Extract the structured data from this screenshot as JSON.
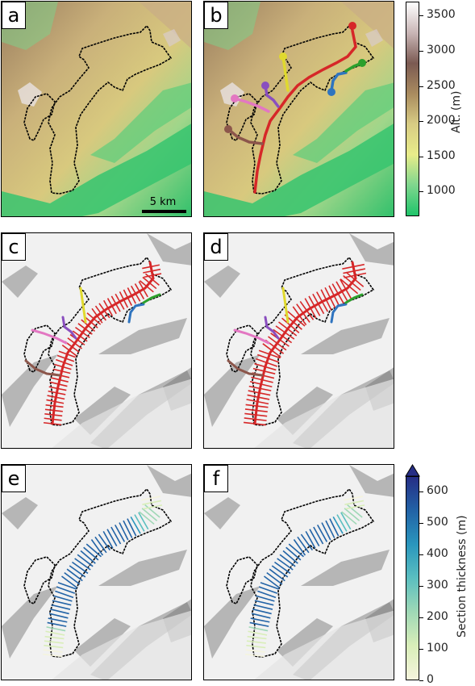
{
  "panels": [
    {
      "label": "a",
      "basemap": "dem"
    },
    {
      "label": "b",
      "basemap": "dem"
    },
    {
      "label": "c",
      "basemap": "hillshade"
    },
    {
      "label": "d",
      "basemap": "hillshade"
    },
    {
      "label": "e",
      "basemap": "hillshade"
    },
    {
      "label": "f",
      "basemap": "hillshade"
    }
  ],
  "scale_bar": {
    "label": "5 km"
  },
  "colorbar_altitude": {
    "label": "Alt. (m)",
    "ticks": [
      "3500",
      "3000",
      "2500",
      "2000",
      "1500",
      "1000"
    ],
    "tick_values": [
      3500,
      3000,
      2500,
      2000,
      1500,
      1000
    ],
    "range": [
      650,
      3700
    ],
    "colors": [
      "#1fc46a",
      "#7fd68e",
      "#e8ec8a",
      "#d8cc84",
      "#a98b5f",
      "#7b5a52",
      "#c9b6b6",
      "#ffffff"
    ]
  },
  "colorbar_thickness": {
    "label": "Section thickness (m)",
    "ticks": [
      "600",
      "500",
      "400",
      "300",
      "200",
      "100",
      "0"
    ],
    "tick_values": [
      600,
      500,
      400,
      300,
      200,
      100,
      0
    ],
    "range": [
      0,
      650
    ],
    "colors": [
      "#f5f4dc",
      "#d9eeb9",
      "#9fd8b6",
      "#5bbfc0",
      "#2a96bd",
      "#2263a6",
      "#262e85"
    ]
  },
  "flowline_colors": {
    "red": "#d62728",
    "yellow": "#e0d92e",
    "purple": "#8a4fbf",
    "pink": "#e377c2",
    "brown": "#8c564b",
    "blue": "#2f74bf",
    "green": "#2ca02c"
  },
  "chart_data": {
    "type": "other",
    "altitude_range": [
      650,
      3700
    ],
    "section_thickness_range": [
      0,
      650
    ]
  }
}
